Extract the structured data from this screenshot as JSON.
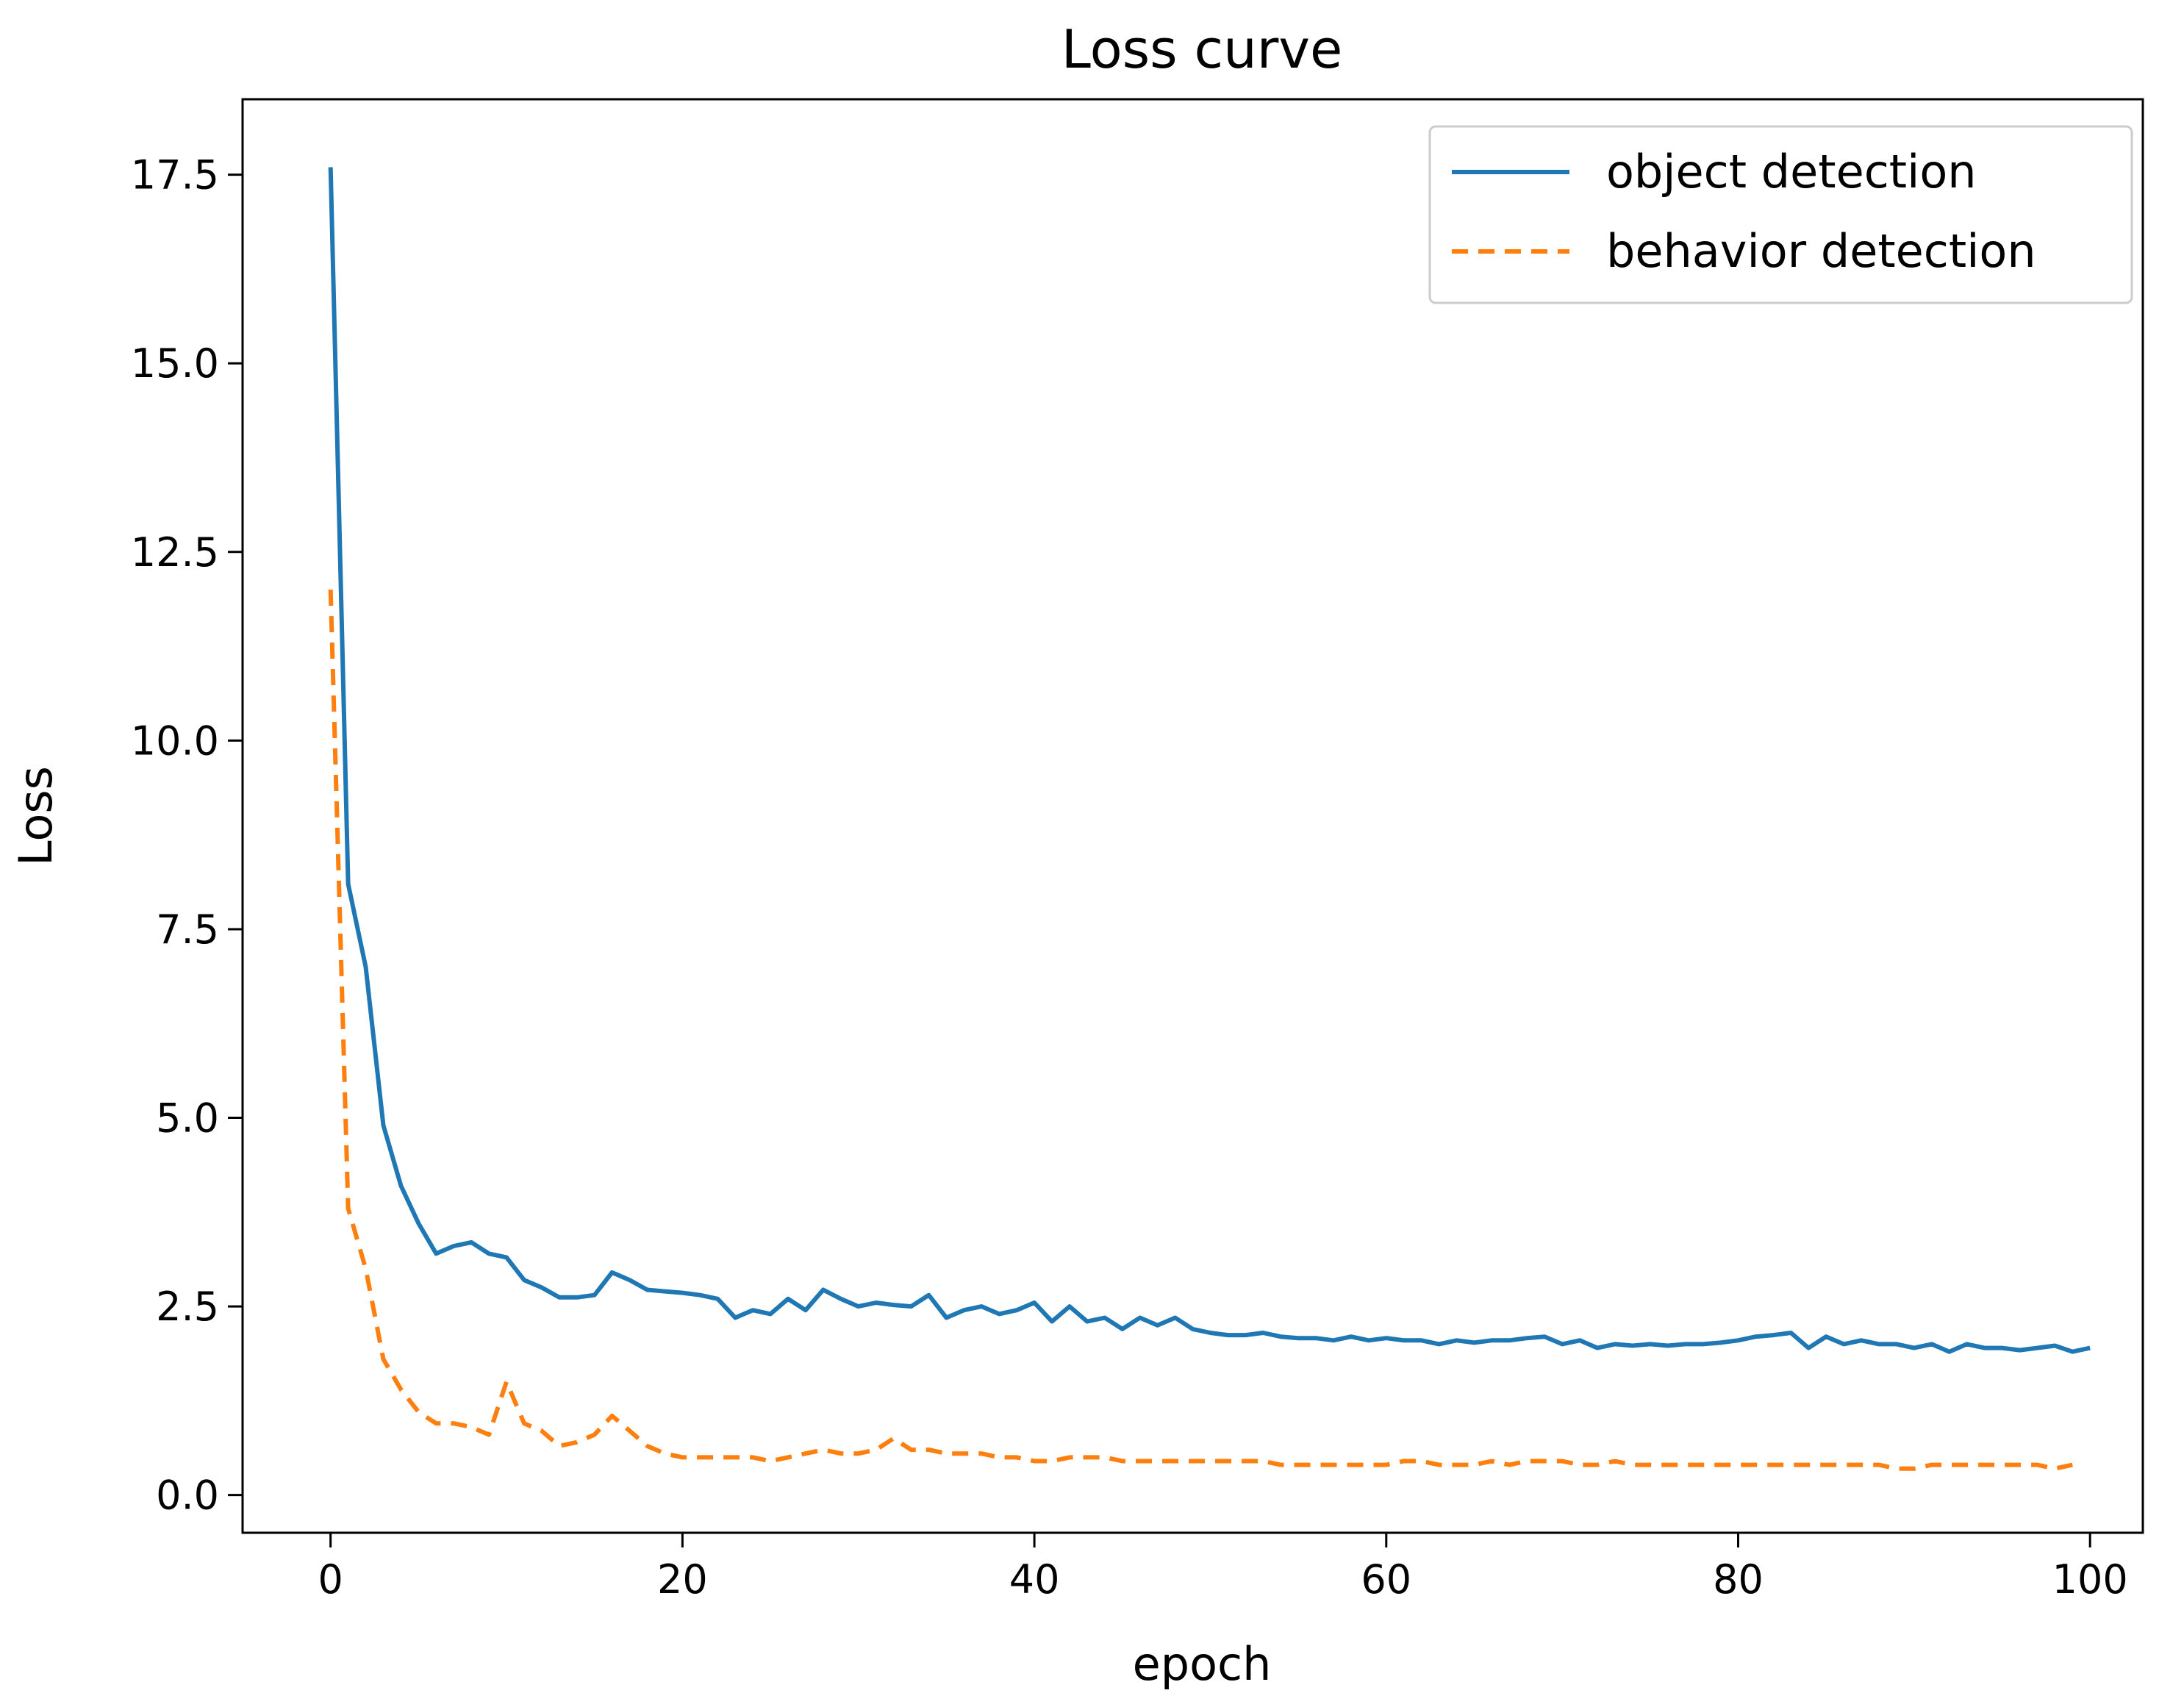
{
  "chart_data": {
    "type": "line",
    "title": "Loss curve",
    "xlabel": "epoch",
    "ylabel": "Loss",
    "xlim": [
      -5,
      103
    ],
    "ylim": [
      -0.5,
      18.5
    ],
    "x_ticks": [
      0,
      20,
      40,
      60,
      80,
      100
    ],
    "y_ticks": [
      0.0,
      2.5,
      5.0,
      7.5,
      10.0,
      12.5,
      15.0,
      17.5
    ],
    "x_tick_labels": [
      "0",
      "20",
      "40",
      "60",
      "80",
      "100"
    ],
    "y_tick_labels": [
      "0.0",
      "2.5",
      "5.0",
      "7.5",
      "10.0",
      "12.5",
      "15.0",
      "17.5"
    ],
    "grid": false,
    "legend_position": "top-right",
    "series": [
      {
        "name": "object detection",
        "color": "#1f77b4",
        "style": "solid",
        "x": [
          0,
          1,
          2,
          3,
          4,
          5,
          6,
          7,
          8,
          9,
          10,
          11,
          12,
          13,
          14,
          15,
          16,
          17,
          18,
          19,
          20,
          21,
          22,
          23,
          24,
          25,
          26,
          27,
          28,
          29,
          30,
          31,
          32,
          33,
          34,
          35,
          36,
          37,
          38,
          39,
          40,
          41,
          42,
          43,
          44,
          45,
          46,
          47,
          48,
          49,
          50,
          51,
          52,
          53,
          54,
          55,
          56,
          57,
          58,
          59,
          60,
          61,
          62,
          63,
          64,
          65,
          66,
          67,
          68,
          69,
          70,
          71,
          72,
          73,
          74,
          75,
          76,
          77,
          78,
          79,
          80,
          81,
          82,
          83,
          84,
          85,
          86,
          87,
          88,
          89,
          90,
          91,
          92,
          93,
          94,
          95,
          96,
          97,
          98,
          99,
          100
        ],
        "values": [
          17.6,
          8.1,
          7.0,
          4.9,
          4.1,
          3.6,
          3.2,
          3.3,
          3.35,
          3.2,
          3.15,
          2.85,
          2.75,
          2.62,
          2.62,
          2.65,
          2.95,
          2.85,
          2.72,
          2.7,
          2.68,
          2.65,
          2.6,
          2.35,
          2.45,
          2.4,
          2.6,
          2.45,
          2.72,
          2.6,
          2.5,
          2.55,
          2.52,
          2.5,
          2.65,
          2.35,
          2.45,
          2.5,
          2.4,
          2.45,
          2.55,
          2.3,
          2.5,
          2.3,
          2.35,
          2.2,
          2.35,
          2.25,
          2.35,
          2.2,
          2.15,
          2.12,
          2.12,
          2.15,
          2.1,
          2.08,
          2.08,
          2.05,
          2.1,
          2.05,
          2.08,
          2.05,
          2.05,
          2.0,
          2.05,
          2.02,
          2.05,
          2.05,
          2.08,
          2.1,
          2.0,
          2.05,
          1.95,
          2.0,
          1.98,
          2.0,
          1.98,
          2.0,
          2.0,
          2.02,
          2.05,
          2.1,
          2.12,
          2.15,
          1.95,
          2.1,
          2.0,
          2.05,
          2.0,
          2.0,
          1.95,
          2.0,
          1.9,
          2.0,
          1.95,
          1.95,
          1.92,
          1.95,
          1.98,
          1.9,
          1.95
        ]
      },
      {
        "name": "behavior detection",
        "color": "#ff7f0e",
        "style": "dashed",
        "x": [
          0,
          1,
          2,
          3,
          4,
          5,
          6,
          7,
          8,
          9,
          10,
          11,
          12,
          13,
          14,
          15,
          16,
          17,
          18,
          19,
          20,
          21,
          22,
          23,
          24,
          25,
          26,
          27,
          28,
          29,
          30,
          31,
          32,
          33,
          34,
          35,
          36,
          37,
          38,
          39,
          40,
          41,
          42,
          43,
          44,
          45,
          46,
          47,
          48,
          49,
          50,
          51,
          52,
          53,
          54,
          55,
          56,
          57,
          58,
          59,
          60,
          61,
          62,
          63,
          64,
          65,
          66,
          67,
          68,
          69,
          70,
          71,
          72,
          73,
          74,
          75,
          76,
          77,
          78,
          79,
          80,
          81,
          82,
          83,
          84,
          85,
          86,
          87,
          88,
          89,
          90,
          91,
          92,
          93,
          94,
          95,
          96,
          97,
          98,
          99
        ],
        "values": [
          12.0,
          3.8,
          3.0,
          1.8,
          1.4,
          1.1,
          0.95,
          0.95,
          0.9,
          0.8,
          1.5,
          0.95,
          0.85,
          0.65,
          0.7,
          0.8,
          1.05,
          0.85,
          0.65,
          0.55,
          0.5,
          0.5,
          0.5,
          0.5,
          0.5,
          0.45,
          0.5,
          0.55,
          0.6,
          0.55,
          0.55,
          0.6,
          0.75,
          0.6,
          0.6,
          0.55,
          0.55,
          0.55,
          0.5,
          0.5,
          0.45,
          0.45,
          0.5,
          0.5,
          0.5,
          0.45,
          0.45,
          0.45,
          0.45,
          0.45,
          0.45,
          0.45,
          0.45,
          0.45,
          0.4,
          0.4,
          0.4,
          0.4,
          0.4,
          0.4,
          0.4,
          0.45,
          0.45,
          0.4,
          0.4,
          0.4,
          0.45,
          0.4,
          0.45,
          0.45,
          0.45,
          0.4,
          0.4,
          0.45,
          0.4,
          0.4,
          0.4,
          0.4,
          0.4,
          0.4,
          0.4,
          0.4,
          0.4,
          0.4,
          0.4,
          0.4,
          0.4,
          0.4,
          0.4,
          0.35,
          0.35,
          0.4,
          0.4,
          0.4,
          0.4,
          0.4,
          0.4,
          0.4,
          0.35,
          0.4
        ]
      }
    ]
  }
}
